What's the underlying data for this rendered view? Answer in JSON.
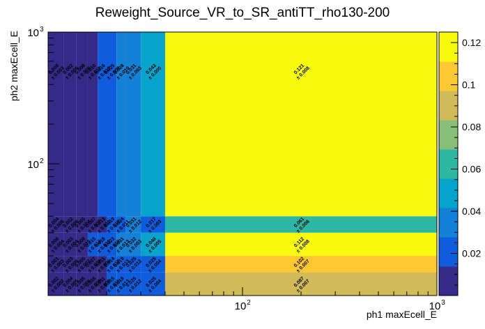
{
  "chart_data": {
    "type": "heatmap",
    "title": "Reweight_Source_VR_to_SR_antiTT_rho130-200",
    "xlabel": "ph1 maxEcell_E",
    "ylabel": "ph2 maxEcell_E",
    "x_scale": "log",
    "y_scale": "log",
    "xlim": [
      10,
      1000
    ],
    "ylim": [
      10,
      1000
    ],
    "x_ticks": [
      {
        "value": 100,
        "base": "10",
        "exp": "2"
      },
      {
        "value": 1000,
        "base": "10",
        "exp": "3"
      }
    ],
    "y_ticks": [
      {
        "value": 100,
        "base": "10",
        "exp": "2"
      },
      {
        "value": 1000,
        "base": "10",
        "exp": "3"
      }
    ],
    "x_edges": [
      10,
      12,
      14,
      16,
      18,
      20,
      22.5,
      25,
      30,
      40,
      1000
    ],
    "y_edges": [
      10,
      15,
      20,
      30,
      40,
      1000
    ],
    "z": [
      [
        0.002,
        0.004,
        0.005,
        0.008,
        0.011,
        0.015,
        0.019,
        0.025,
        0.025,
        0.087
      ],
      [
        0.001,
        0.003,
        0.005,
        0.007,
        0.011,
        0.014,
        0.019,
        0.025,
        0.025,
        0.102
      ],
      [
        0.006,
        0.003,
        0.009,
        0.015,
        0.018,
        0.023,
        0.031,
        0.032,
        0.048,
        0.112
      ],
      [
        0.004,
        0.002,
        0.005,
        0.007,
        0.013,
        0.019,
        0.024,
        0.031,
        0.017,
        0.061
      ],
      [
        0.008,
        0.002,
        0.008,
        0.01,
        0.016,
        0.025,
        0.028,
        0.031,
        0.043,
        0.121
      ]
    ],
    "labels": [
      [
        {
          "v": "0.002",
          "e": "0.002"
        },
        {
          "v": "0.004",
          "e": "0.005"
        },
        {
          "v": "0.005",
          "e": "0.006"
        },
        {
          "v": "0.008",
          "e": "0.009"
        },
        {
          "v": "0.011",
          "e": "0.008"
        },
        {
          "v": "0.015",
          "e": "0.011"
        },
        {
          "v": "0.019",
          "e": "0.013"
        },
        {
          "v": "0.025",
          "e": "0.012"
        },
        {
          "v": "0.025",
          "e": "0.004"
        },
        {
          "v": "0.087",
          "e": "0.007"
        }
      ],
      [
        {
          "v": "0.001",
          "e": "0.003"
        },
        {
          "v": "0.003",
          "e": "0.006"
        },
        {
          "v": "0.005",
          "e": "0.007"
        },
        {
          "v": "0.007",
          "e": "0.009"
        },
        {
          "v": "0.011",
          "e": "0.008"
        },
        {
          "v": "0.014",
          "e": "0.012"
        },
        {
          "v": "0.019",
          "e": "0.013"
        },
        {
          "v": "0.025",
          "e": "0.012"
        },
        {
          "v": "0.025",
          "e": "0.004"
        },
        {
          "v": "0.102",
          "e": "0.007"
        }
      ],
      [
        {
          "v": "0.006",
          "e": "0.004"
        },
        {
          "v": "0.003",
          "e": "0.004"
        },
        {
          "v": "0.009",
          "e": "0.010"
        },
        {
          "v": "0.015",
          "e": "0.016"
        },
        {
          "v": "0.018",
          "e": "0.012"
        },
        {
          "v": "0.023",
          "e": "0.010"
        },
        {
          "v": "0.031",
          "e": "0.013"
        },
        {
          "v": "0.032",
          "e": "0.003"
        },
        {
          "v": "0.048",
          "e": "0.005"
        },
        {
          "v": "0.112",
          "e": "0.008"
        }
      ],
      [
        {
          "v": "0.004",
          "e": "0.005"
        },
        {
          "v": "0.002",
          "e": "0.006"
        },
        {
          "v": "0.005",
          "e": "0.004"
        },
        {
          "v": "0.007",
          "e": "0.007"
        },
        {
          "v": "0.013",
          "e": "0.012"
        },
        {
          "v": "0.019",
          "e": "0.010"
        },
        {
          "v": "0.024",
          "e": "0.011"
        },
        {
          "v": "0.031",
          "e": "0.012"
        },
        {
          "v": "0.017",
          "e": "0.003"
        },
        {
          "v": "0.061",
          "e": "0.006"
        }
      ],
      [
        {
          "v": "0.008",
          "e": "0.003"
        },
        {
          "v": "0.002",
          "e": "0.006"
        },
        {
          "v": "0.008",
          "e": "0.006"
        },
        {
          "v": "0.010",
          "e": "0.012"
        },
        {
          "v": "0.016",
          "e": "0.012"
        },
        {
          "v": "0.025",
          "e": "0.009"
        },
        {
          "v": "0.028",
          "e": "0.019"
        },
        {
          "v": "0.031",
          "e": "0.003"
        },
        {
          "v": "0.043",
          "e": "0.005"
        },
        {
          "v": "0.121",
          "e": "0.008"
        }
      ]
    ],
    "label_prefix": "±",
    "zlim": [
      0,
      0.125
    ],
    "colorbar_ticks": [
      "0.02",
      "0.04",
      "0.06",
      "0.08",
      "0.1",
      "0.12"
    ],
    "colorbar_tick_values": [
      0.02,
      0.04,
      0.06,
      0.08,
      0.1,
      0.12
    ],
    "palette": [
      "#352a87",
      "#0f5cdd",
      "#1481d6",
      "#06a4ca",
      "#2eb7a4",
      "#87bf77",
      "#d1bb59",
      "#fec832",
      "#f9fb0e"
    ],
    "grid": false,
    "legend": "colorbar-right"
  }
}
